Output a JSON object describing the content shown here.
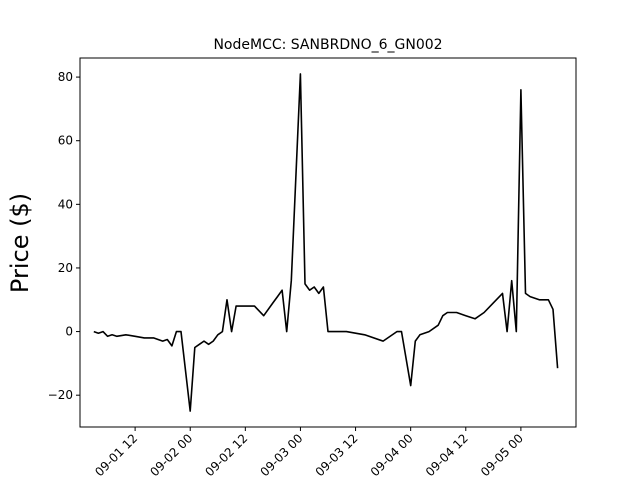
{
  "chart_data": {
    "type": "line",
    "title": "NodeMCC: SANBRDNO_6_GN002",
    "xlabel": "",
    "ylabel": "Price ($)",
    "xlim": [
      "2023-09-01 00:00",
      "2023-09-05 12:00"
    ],
    "ylim": [
      -30,
      86
    ],
    "grid": false,
    "line_color": "#000000",
    "xticks": [
      {
        "t": "2023-09-01 12:00",
        "label": "09-01 12"
      },
      {
        "t": "2023-09-02 00:00",
        "label": "09-02 00"
      },
      {
        "t": "2023-09-02 12:00",
        "label": "09-02 12"
      },
      {
        "t": "2023-09-03 00:00",
        "label": "09-03 00"
      },
      {
        "t": "2023-09-03 12:00",
        "label": "09-03 12"
      },
      {
        "t": "2023-09-04 00:00",
        "label": "09-04 00"
      },
      {
        "t": "2023-09-04 12:00",
        "label": "09-04 12"
      },
      {
        "t": "2023-09-05 00:00",
        "label": "09-05 00"
      }
    ],
    "yticks": [
      {
        "v": -20,
        "label": "−20"
      },
      {
        "v": 0,
        "label": "0"
      },
      {
        "v": 20,
        "label": "20"
      },
      {
        "v": 40,
        "label": "40"
      },
      {
        "v": 60,
        "label": "60"
      },
      {
        "v": 80,
        "label": "80"
      }
    ],
    "series": [
      {
        "x": [
          "2023-09-01 03:00",
          "2023-09-01 04:00",
          "2023-09-01 05:00",
          "2023-09-01 06:00",
          "2023-09-01 07:00",
          "2023-09-01 08:00",
          "2023-09-01 10:00",
          "2023-09-01 12:00",
          "2023-09-01 14:00",
          "2023-09-01 16:00",
          "2023-09-01 18:00",
          "2023-09-01 19:00",
          "2023-09-01 20:00",
          "2023-09-01 21:00",
          "2023-09-01 22:00",
          "2023-09-02 00:00",
          "2023-09-02 01:00",
          "2023-09-02 02:00",
          "2023-09-02 03:00",
          "2023-09-02 04:00",
          "2023-09-02 05:00",
          "2023-09-02 06:00",
          "2023-09-02 07:00",
          "2023-09-02 08:00",
          "2023-09-02 09:00",
          "2023-09-02 10:00",
          "2023-09-02 12:00",
          "2023-09-02 14:00",
          "2023-09-02 16:00",
          "2023-09-02 18:00",
          "2023-09-02 19:00",
          "2023-09-02 20:00",
          "2023-09-02 21:00",
          "2023-09-02 22:00",
          "2023-09-03 00:00",
          "2023-09-03 01:00",
          "2023-09-03 02:00",
          "2023-09-03 03:00",
          "2023-09-03 04:00",
          "2023-09-03 05:00",
          "2023-09-03 06:00",
          "2023-09-03 07:00",
          "2023-09-03 10:00",
          "2023-09-03 14:00",
          "2023-09-03 18:00",
          "2023-09-03 21:00",
          "2023-09-03 22:00",
          "2023-09-04 00:00",
          "2023-09-04 01:00",
          "2023-09-04 02:00",
          "2023-09-04 04:00",
          "2023-09-04 06:00",
          "2023-09-04 07:00",
          "2023-09-04 08:00",
          "2023-09-04 10:00",
          "2023-09-04 12:00",
          "2023-09-04 14:00",
          "2023-09-04 16:00",
          "2023-09-04 18:00",
          "2023-09-04 20:00",
          "2023-09-04 21:00",
          "2023-09-04 22:00",
          "2023-09-04 23:00",
          "2023-09-05 00:00",
          "2023-09-05 01:00",
          "2023-09-05 02:00",
          "2023-09-05 04:00",
          "2023-09-05 06:00",
          "2023-09-05 07:00",
          "2023-09-05 08:00"
        ],
        "y": [
          0,
          -0.5,
          0,
          -1.5,
          -1,
          -1.5,
          -1,
          -1.5,
          -2,
          -2,
          -3,
          -2.5,
          -4.5,
          0,
          0,
          -25,
          -5,
          -4,
          -3,
          -4,
          -3,
          -1,
          0,
          10,
          0,
          8,
          8,
          8,
          5,
          9,
          11,
          13,
          0,
          16,
          81,
          15,
          13,
          14,
          12,
          14,
          0,
          0,
          0,
          -1,
          -3,
          0,
          0,
          -17,
          -3,
          -1,
          0,
          2,
          5,
          6,
          6,
          5,
          4,
          6,
          9,
          12,
          0,
          16,
          0,
          76,
          12,
          11,
          10,
          10,
          7,
          -11.5
        ]
      }
    ]
  }
}
